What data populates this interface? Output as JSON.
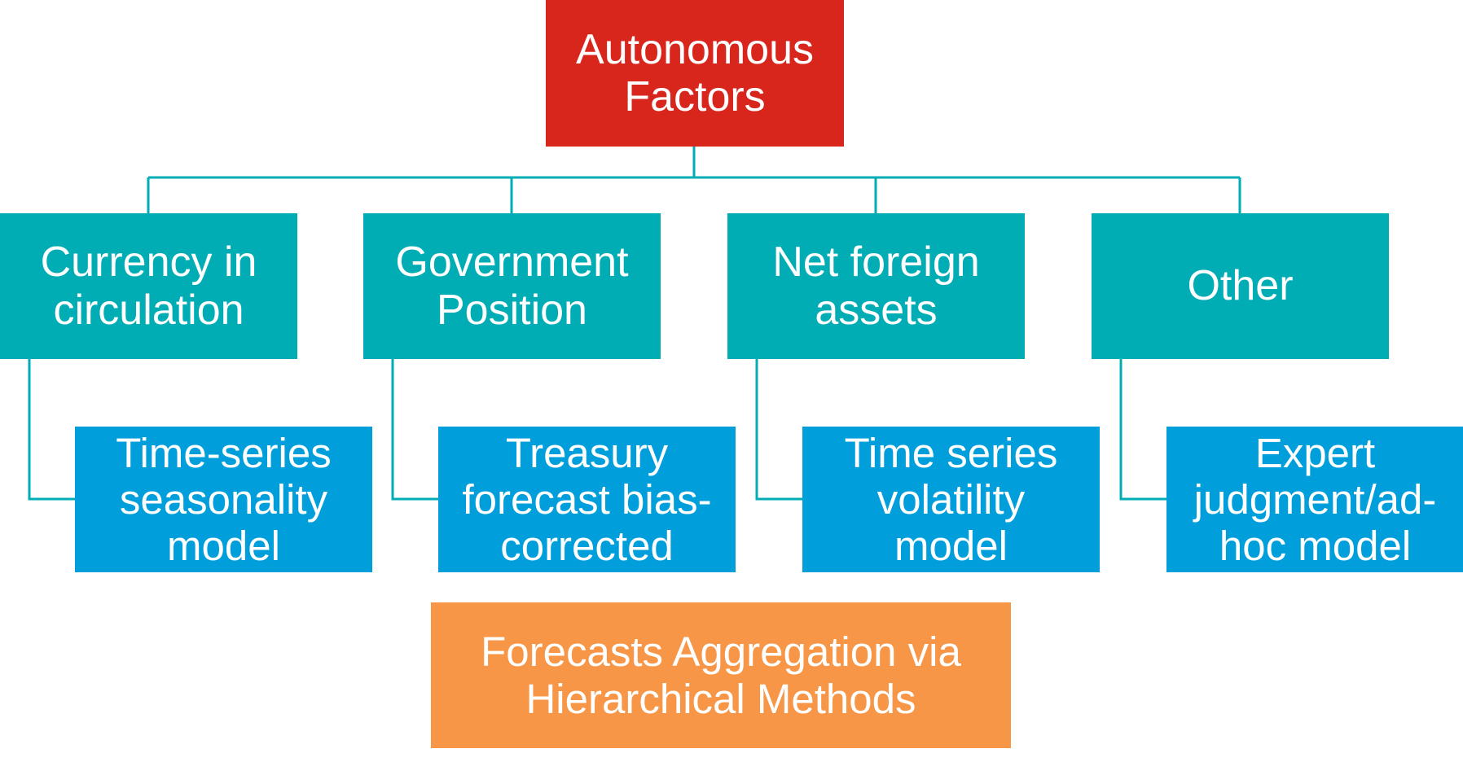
{
  "colors": {
    "root": "#D9261C",
    "category": "#00ADB5",
    "method": "#009FDB",
    "aggregation": "#F79646",
    "connector": "#00ADB5",
    "text": "#FFFFFF"
  },
  "root": {
    "label": "Autonomous\nFactors"
  },
  "categories": [
    {
      "label": "Currency in\ncirculation"
    },
    {
      "label": "Government\nPosition"
    },
    {
      "label": "Net foreign\nassets"
    },
    {
      "label": "Other"
    }
  ],
  "methods": [
    {
      "label": "Time-series\nseasonality\nmodel"
    },
    {
      "label": "Treasury\nforecast bias-\ncorrected"
    },
    {
      "label": "Time series\nvolatility\nmodel"
    },
    {
      "label": "Expert\njudgment/ad-\nhoc model"
    }
  ],
  "aggregation": {
    "label": "Forecasts Aggregation via\nHierarchical Methods"
  }
}
